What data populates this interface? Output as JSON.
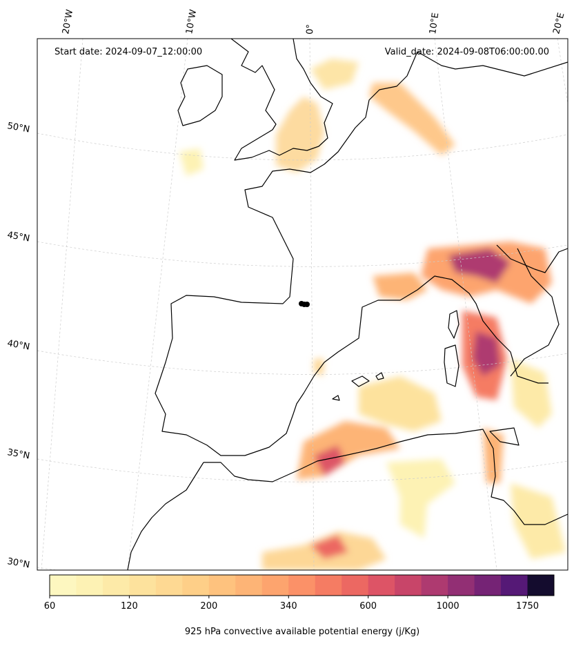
{
  "header": {
    "start_date": "Start date: 2024-09-07_12:00:00",
    "valid_date": "Valid_date: 2024-09-08T06:00:00.00"
  },
  "lon_labels": [
    "20°W",
    "10°W",
    "0°",
    "10°E",
    "20°E"
  ],
  "lat_labels": [
    "50°N",
    "45°N",
    "40°N",
    "35°N",
    "30°N"
  ],
  "colorbar": {
    "title": "925 hPa convective available potential energy (j/Kg)",
    "ticks": [
      "60",
      "120",
      "200",
      "340",
      "600",
      "1000",
      "1750"
    ],
    "colors": [
      "#fdf7c0",
      "#fdf2b4",
      "#fdeaa8",
      "#fde29d",
      "#fed993",
      "#fecf88",
      "#fec27e",
      "#fdb476",
      "#fda46e",
      "#fb9168",
      "#f57c63",
      "#ec6862",
      "#dd5466",
      "#c84569",
      "#ae3a70",
      "#922f74",
      "#752375",
      "#551976",
      "#140c2e"
    ]
  },
  "map_features": {
    "marker_color": "#000000",
    "coastline_color": "#000000",
    "gridline_color": "#cccccc"
  }
}
